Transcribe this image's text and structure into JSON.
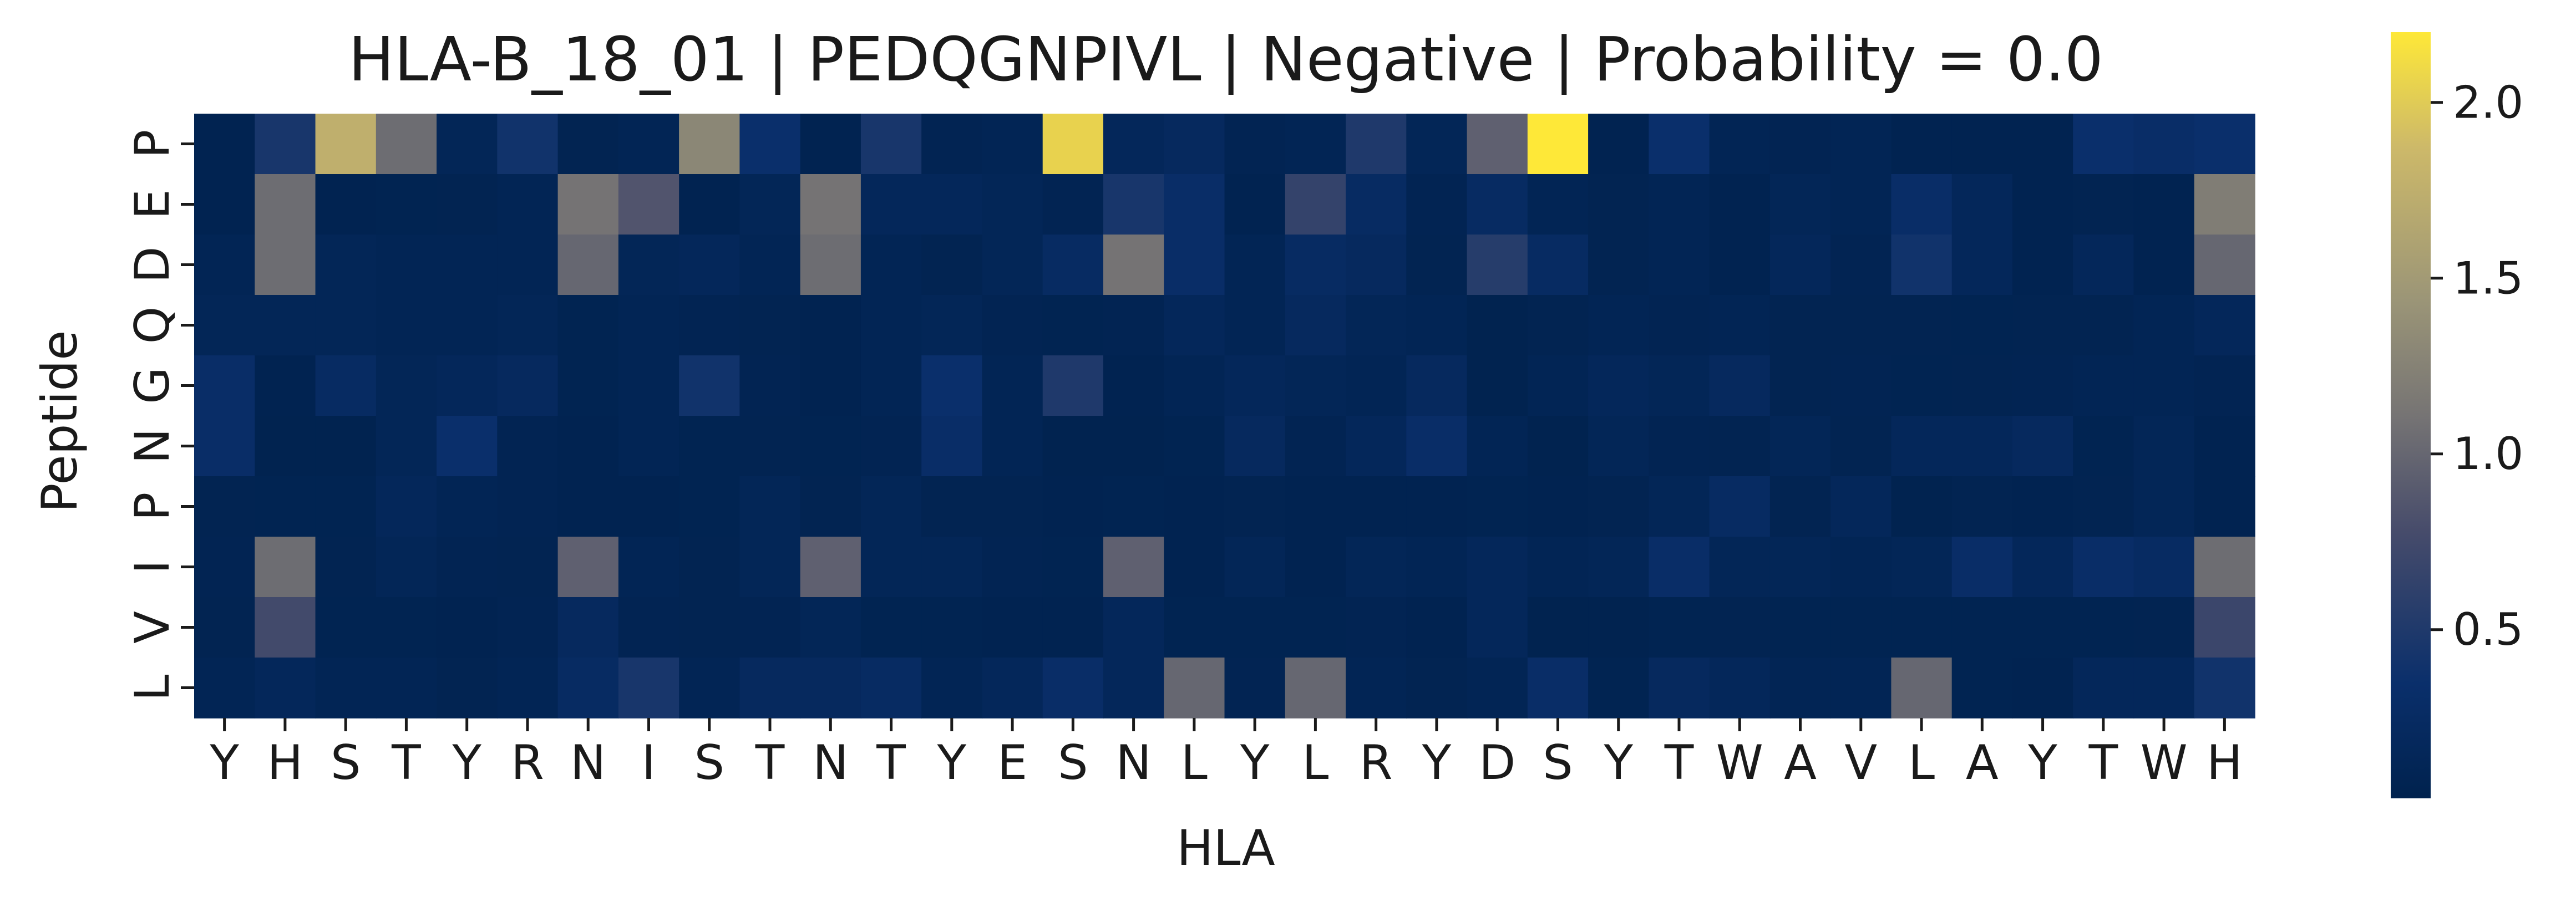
{
  "chart_data": {
    "type": "heatmap",
    "title": "HLA-B_18_01 | PEDQGNPIVL | Negative | Probability = 0.0",
    "xlabel": "HLA",
    "ylabel": "Peptide",
    "x_labels": [
      "Y",
      "H",
      "S",
      "T",
      "Y",
      "R",
      "N",
      "I",
      "S",
      "T",
      "N",
      "T",
      "Y",
      "E",
      "S",
      "N",
      "L",
      "Y",
      "L",
      "R",
      "Y",
      "D",
      "S",
      "Y",
      "T",
      "W",
      "A",
      "V",
      "L",
      "A",
      "Y",
      "T",
      "W",
      "H"
    ],
    "y_labels": [
      "P",
      "E",
      "D",
      "Q",
      "G",
      "N",
      "P",
      "I",
      "V",
      "L"
    ],
    "colormap": "cividis",
    "colorbar": {
      "min": 0.02,
      "max": 2.2,
      "ticks": [
        0.5,
        1.0,
        1.5,
        2.0
      ],
      "tick_labels": [
        "0.5",
        "1.0",
        "1.5",
        "2.0"
      ]
    },
    "values": [
      [
        0.05,
        0.45,
        1.75,
        1.05,
        0.12,
        0.4,
        0.07,
        0.1,
        1.3,
        0.35,
        0.05,
        0.45,
        0.08,
        0.1,
        2.05,
        0.15,
        0.2,
        0.08,
        0.1,
        0.5,
        0.12,
        0.95,
        2.2,
        0.05,
        0.35,
        0.1,
        0.08,
        0.1,
        0.05,
        0.05,
        0.05,
        0.35,
        0.3,
        0.35
      ],
      [
        0.05,
        1.05,
        0.05,
        0.06,
        0.07,
        0.1,
        1.1,
        0.85,
        0.05,
        0.12,
        1.1,
        0.15,
        0.15,
        0.12,
        0.08,
        0.45,
        0.3,
        0.05,
        0.65,
        0.25,
        0.08,
        0.25,
        0.1,
        0.07,
        0.1,
        0.05,
        0.12,
        0.1,
        0.3,
        0.15,
        0.05,
        0.07,
        0.05,
        1.2
      ],
      [
        0.1,
        1.05,
        0.12,
        0.1,
        0.1,
        0.1,
        1.0,
        0.12,
        0.15,
        0.1,
        1.05,
        0.1,
        0.07,
        0.12,
        0.25,
        1.1,
        0.3,
        0.1,
        0.25,
        0.2,
        0.07,
        0.55,
        0.25,
        0.07,
        0.1,
        0.05,
        0.15,
        0.08,
        0.4,
        0.15,
        0.05,
        0.15,
        0.05,
        1.0
      ],
      [
        0.12,
        0.12,
        0.12,
        0.1,
        0.1,
        0.12,
        0.06,
        0.1,
        0.08,
        0.07,
        0.05,
        0.1,
        0.12,
        0.08,
        0.06,
        0.08,
        0.15,
        0.1,
        0.2,
        0.12,
        0.1,
        0.04,
        0.07,
        0.1,
        0.08,
        0.1,
        0.07,
        0.07,
        0.07,
        0.06,
        0.07,
        0.07,
        0.1,
        0.15
      ],
      [
        0.3,
        0.05,
        0.25,
        0.12,
        0.15,
        0.2,
        0.06,
        0.1,
        0.4,
        0.08,
        0.05,
        0.1,
        0.35,
        0.1,
        0.5,
        0.05,
        0.1,
        0.15,
        0.12,
        0.1,
        0.2,
        0.04,
        0.1,
        0.15,
        0.12,
        0.2,
        0.07,
        0.08,
        0.06,
        0.07,
        0.08,
        0.1,
        0.1,
        0.08
      ],
      [
        0.3,
        0.04,
        0.04,
        0.12,
        0.35,
        0.08,
        0.05,
        0.1,
        0.06,
        0.07,
        0.06,
        0.08,
        0.3,
        0.1,
        0.04,
        0.04,
        0.06,
        0.2,
        0.08,
        0.15,
        0.3,
        0.1,
        0.04,
        0.12,
        0.08,
        0.07,
        0.12,
        0.07,
        0.15,
        0.15,
        0.2,
        0.06,
        0.12,
        0.05
      ],
      [
        0.07,
        0.06,
        0.06,
        0.15,
        0.1,
        0.08,
        0.05,
        0.05,
        0.06,
        0.12,
        0.07,
        0.12,
        0.07,
        0.07,
        0.05,
        0.06,
        0.05,
        0.07,
        0.05,
        0.05,
        0.05,
        0.06,
        0.05,
        0.07,
        0.12,
        0.25,
        0.07,
        0.15,
        0.04,
        0.07,
        0.05,
        0.07,
        0.12,
        0.05
      ],
      [
        0.08,
        1.05,
        0.07,
        0.12,
        0.08,
        0.07,
        0.95,
        0.1,
        0.07,
        0.12,
        0.95,
        0.12,
        0.12,
        0.08,
        0.06,
        0.95,
        0.05,
        0.12,
        0.05,
        0.12,
        0.1,
        0.15,
        0.1,
        0.12,
        0.3,
        0.12,
        0.12,
        0.1,
        0.12,
        0.3,
        0.15,
        0.3,
        0.25,
        1.05
      ],
      [
        0.07,
        0.75,
        0.06,
        0.06,
        0.05,
        0.08,
        0.2,
        0.08,
        0.07,
        0.08,
        0.12,
        0.06,
        0.06,
        0.05,
        0.05,
        0.15,
        0.06,
        0.06,
        0.06,
        0.08,
        0.05,
        0.15,
        0.04,
        0.04,
        0.06,
        0.07,
        0.06,
        0.06,
        0.06,
        0.06,
        0.06,
        0.06,
        0.07,
        0.7
      ],
      [
        0.1,
        0.15,
        0.1,
        0.1,
        0.07,
        0.1,
        0.25,
        0.45,
        0.1,
        0.2,
        0.2,
        0.25,
        0.1,
        0.15,
        0.3,
        0.15,
        1.0,
        0.08,
        1.0,
        0.1,
        0.07,
        0.1,
        0.3,
        0.06,
        0.2,
        0.15,
        0.1,
        0.1,
        1.0,
        0.06,
        0.05,
        0.15,
        0.15,
        0.4
      ]
    ]
  }
}
